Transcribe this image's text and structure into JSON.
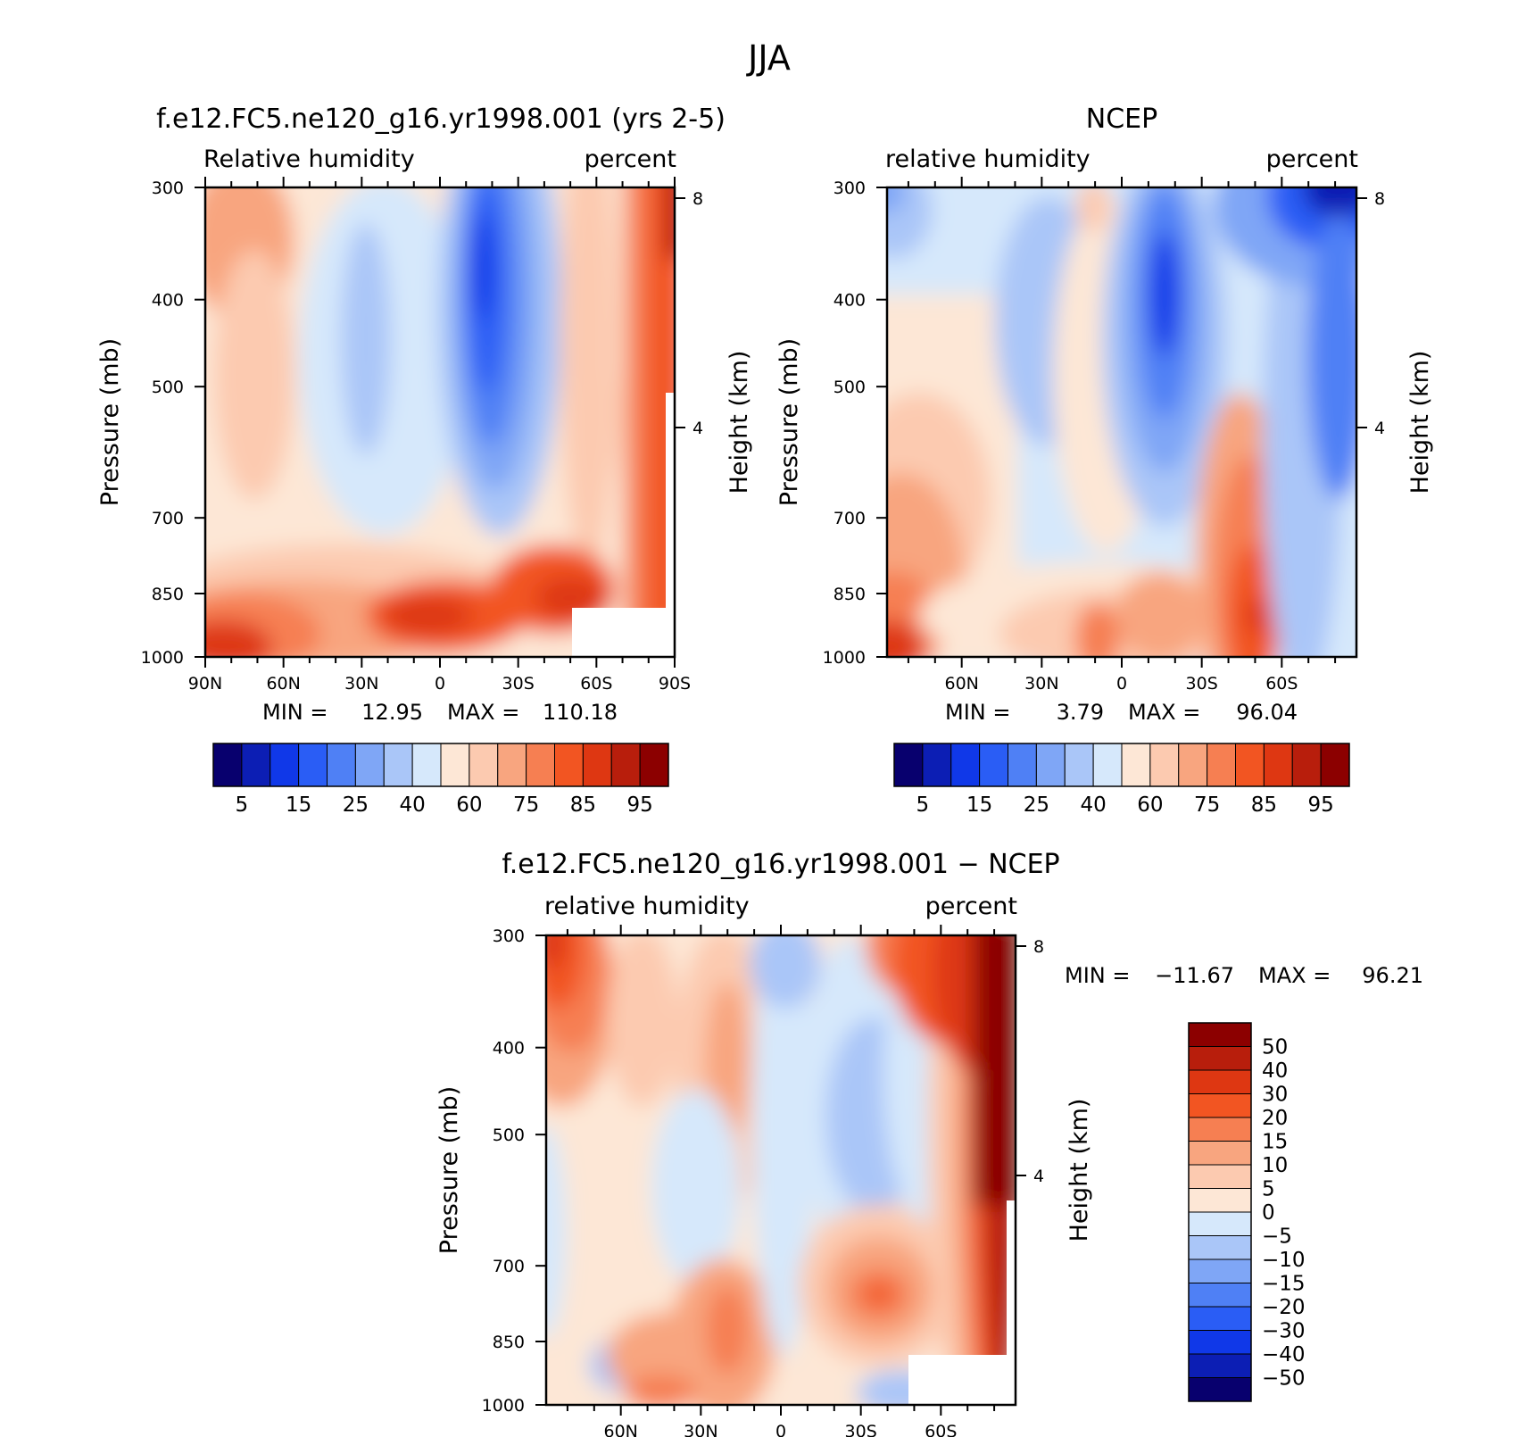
{
  "season_title": "JJA",
  "chart_data": [
    {
      "type": "heatmap",
      "title": "f.e12.FC5.ne120_g16.yr1998.001 (yrs 2-5)",
      "variable_label": "Relative humidity",
      "units_label": "percent",
      "ylabel": "Pressure (mb)",
      "right_label": "Height (km)",
      "x_ticks": [
        "90N",
        "60N",
        "30N",
        "0",
        "30S",
        "60S",
        "90S"
      ],
      "x_tick_values": [
        90,
        60,
        30,
        0,
        -30,
        -60,
        -90
      ],
      "xlim": [
        90,
        -90
      ],
      "y_ticks": [
        "300",
        "400",
        "500",
        "700",
        "850",
        "1000"
      ],
      "y_tick_values": [
        300,
        400,
        500,
        700,
        850,
        1000
      ],
      "ylim": [
        300,
        1000
      ],
      "height_ticks": [
        "8",
        "4"
      ],
      "height_tick_values": [
        8,
        4
      ],
      "min_label": "MIN =",
      "min_value": "12.95",
      "max_label": "MAX =",
      "max_value": "110.18",
      "colorbar_labels": [
        "5",
        "15",
        "25",
        "40",
        "60",
        "75",
        "85",
        "95"
      ],
      "colorbar_orientation": "horizontal"
    },
    {
      "type": "heatmap",
      "title": "NCEP",
      "variable_label": "relative humidity",
      "units_label": "percent",
      "ylabel": "Pressure (mb)",
      "right_label": "Height (km)",
      "x_ticks": [
        "60N",
        "30N",
        "0",
        "30S",
        "60S"
      ],
      "x_tick_values": [
        60,
        30,
        0,
        -30,
        -60
      ],
      "xlim": [
        88,
        -88
      ],
      "y_ticks": [
        "300",
        "400",
        "500",
        "700",
        "850",
        "1000"
      ],
      "y_tick_values": [
        300,
        400,
        500,
        700,
        850,
        1000
      ],
      "ylim": [
        300,
        1000
      ],
      "height_ticks": [
        "8",
        "4"
      ],
      "height_tick_values": [
        8,
        4
      ],
      "min_label": "MIN =",
      "min_value": "3.79",
      "max_label": "MAX =",
      "max_value": "96.04",
      "colorbar_labels": [
        "5",
        "15",
        "25",
        "40",
        "60",
        "75",
        "85",
        "95"
      ],
      "colorbar_orientation": "horizontal"
    },
    {
      "type": "heatmap",
      "title": "f.e12.FC5.ne120_g16.yr1998.001 - NCEP",
      "variable_label": "relative humidity",
      "units_label": "percent",
      "ylabel": "Pressure (mb)",
      "right_label": "Height (km)",
      "x_ticks": [
        "60N",
        "30N",
        "0",
        "30S",
        "60S"
      ],
      "x_tick_values": [
        60,
        30,
        0,
        -30,
        -60
      ],
      "xlim": [
        88,
        -88
      ],
      "y_ticks": [
        "300",
        "400",
        "500",
        "700",
        "850",
        "1000"
      ],
      "y_tick_values": [
        300,
        400,
        500,
        700,
        850,
        1000
      ],
      "ylim": [
        300,
        1000
      ],
      "height_ticks": [
        "8",
        "4"
      ],
      "height_tick_values": [
        8,
        4
      ],
      "min_label": "MIN =",
      "min_value": "-11.67",
      "max_label": "MAX =",
      "max_value": "96.21",
      "colorbar_labels": [
        "50",
        "40",
        "30",
        "20",
        "15",
        "10",
        "5",
        "0",
        "-5",
        "-10",
        "-15",
        "-20",
        "-30",
        "-40",
        "-50"
      ],
      "colorbar_orientation": "vertical"
    }
  ],
  "colors": {
    "rh_scale": [
      "#08006e",
      "#0c1eb4",
      "#1038e8",
      "#2a5df5",
      "#4f80f5",
      "#7fa6f6",
      "#aac6f8",
      "#d6e8fb",
      "#fde7d6",
      "#fccab0",
      "#f8a57f",
      "#f67f52",
      "#f25522",
      "#de3712",
      "#b81e0c",
      "#8c0000"
    ],
    "diff_scale": [
      "#8c0000",
      "#b81e0c",
      "#de3712",
      "#f25522",
      "#f67f52",
      "#f8a57f",
      "#fccab0",
      "#fde7d6",
      "#d6e8fb",
      "#aac6f8",
      "#7fa6f6",
      "#4f80f5",
      "#2a5df5",
      "#1038e8",
      "#0c1eb4",
      "#08006e"
    ]
  }
}
